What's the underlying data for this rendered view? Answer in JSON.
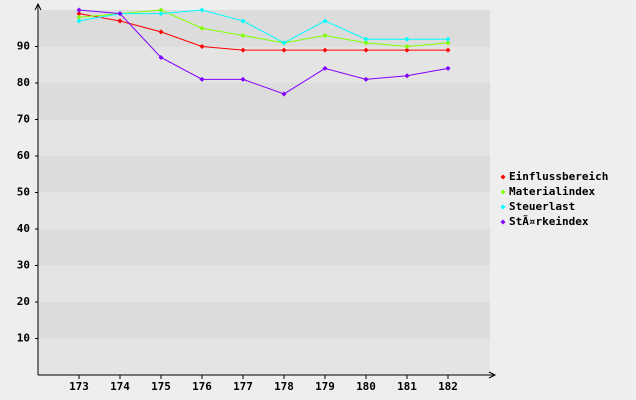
{
  "chart_data": {
    "type": "line",
    "categories": [
      "173",
      "174",
      "175",
      "176",
      "177",
      "178",
      "179",
      "180",
      "181",
      "182"
    ],
    "series": [
      {
        "name": "Einflussbereich",
        "color": "#ff0000",
        "values": [
          99,
          97,
          94,
          90,
          89,
          89,
          89,
          89,
          89,
          89
        ]
      },
      {
        "name": "Materialindex",
        "color": "#80ff00",
        "values": [
          98,
          99,
          100,
          95,
          93,
          91,
          93,
          91,
          90,
          91
        ]
      },
      {
        "name": "Steuerlast",
        "color": "#00ffff",
        "values": [
          97,
          99,
          99,
          100,
          97,
          91,
          97,
          92,
          92,
          92
        ]
      },
      {
        "name": "StÃ¤rkeindex",
        "color": "#8000ff",
        "values": [
          100,
          99,
          87,
          81,
          81,
          77,
          84,
          81,
          82,
          84
        ]
      }
    ],
    "ylim": [
      0,
      100
    ],
    "yticks": [
      10,
      20,
      30,
      40,
      50,
      60,
      70,
      80,
      90
    ],
    "grid": true,
    "legend": "right"
  }
}
